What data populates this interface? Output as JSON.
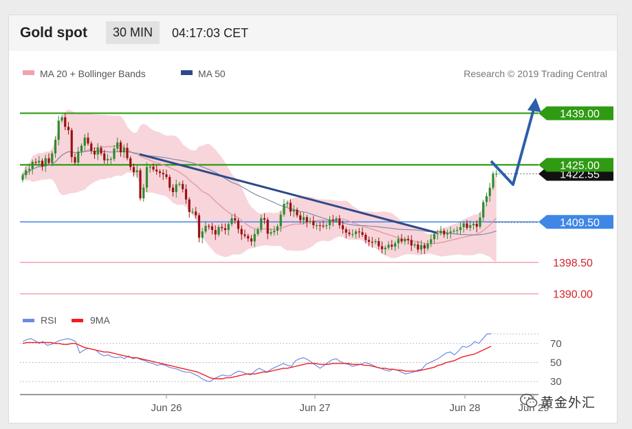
{
  "header": {
    "instrument": "Gold spot",
    "timeframe": "30 MIN",
    "clock": "04:17:03 CET"
  },
  "legend": {
    "ma20": "MA 20 + Bollinger Bands",
    "ma50": "MA 50",
    "rsi": "RSI",
    "ma9": "9MA",
    "credit": "Research © 2019 Trading Central"
  },
  "watermark": "黄金外汇",
  "colors": {
    "up": "#2e8b2e",
    "down": "#9b1010",
    "band": "#f4c7cf",
    "ma20": "#e49aa6",
    "ma50": "#7f8fa6",
    "trend": "#2d4a88",
    "forecast": "#2b5faa",
    "resistance": "#2f9a12",
    "pivot": "#3f86e6",
    "support": "#d3222a",
    "rsi": "#6c8ae4",
    "ma9": "#ee1e1e"
  },
  "chart_data": {
    "type": "candlestick",
    "price_axis": {
      "ylim": [
        1386,
        1446
      ]
    },
    "x_axis": {
      "ticks": [
        "Jun 26",
        "Jun 27",
        "Jun 28",
        "Jun 29"
      ]
    },
    "levels": [
      {
        "value": 1439.0,
        "label": "1439.00",
        "kind": "resistance"
      },
      {
        "value": 1425.0,
        "label": "1425.00",
        "kind": "resistance"
      },
      {
        "value": 1422.55,
        "label": "1422.55",
        "kind": "last"
      },
      {
        "value": 1409.5,
        "label": "1409.50",
        "kind": "pivot"
      },
      {
        "value": 1398.5,
        "label": "1398.50",
        "kind": "support"
      },
      {
        "value": 1390.0,
        "label": "1390.00",
        "kind": "support"
      }
    ],
    "close": [
      1422.2,
      1423.5,
      1423.9,
      1425.8,
      1425.6,
      1426.1,
      1424.6,
      1426.8,
      1425.5,
      1428.1,
      1431.8,
      1437.0,
      1437.9,
      1435.3,
      1434.4,
      1427.1,
      1425.6,
      1428.6,
      1430.2,
      1432.4,
      1430.8,
      1428.8,
      1427.8,
      1429.6,
      1428.1,
      1426.2,
      1426.6,
      1426.6,
      1429.4,
      1431.1,
      1428.4,
      1429.6,
      1426.8,
      1424.4,
      1423.0,
      1423.5,
      1415.9,
      1418.8,
      1424.4,
      1424.5,
      1423.7,
      1423.2,
      1422.8,
      1422.4,
      1421.7,
      1418.8,
      1417.6,
      1419.7,
      1419.8,
      1418.4,
      1415.6,
      1412.2,
      1412.3,
      1411.3,
      1405.2,
      1406.9,
      1408.4,
      1408.3,
      1407.3,
      1406.1,
      1408.1,
      1407.8,
      1407.3,
      1408.9,
      1410.5,
      1409.9,
      1407.6,
      1406.1,
      1405.7,
      1405.0,
      1404.2,
      1406.2,
      1407.5,
      1410.5,
      1410.1,
      1406.3,
      1406.7,
      1407.1,
      1408.3,
      1411.5,
      1414.4,
      1414.7,
      1412.3,
      1412.8,
      1411.3,
      1410.0,
      1410.8,
      1409.5,
      1409.8,
      1408.6,
      1408.6,
      1408.5,
      1408.4,
      1408.6,
      1410.1,
      1409.8,
      1410.4,
      1408.6,
      1407.5,
      1406.6,
      1406.2,
      1406.2,
      1406.9,
      1406.7,
      1406.0,
      1404.6,
      1404.1,
      1404.0,
      1404.3,
      1402.9,
      1402.1,
      1402.5,
      1403.3,
      1402.8,
      1403.7,
      1404.9,
      1404.2,
      1404.9,
      1404.6,
      1403.1,
      1403.4,
      1402.0,
      1403.2,
      1402.3,
      1403.6,
      1404.8,
      1406.2,
      1406.4,
      1407.1,
      1406.1,
      1406.5,
      1406.9,
      1407.1,
      1407.3,
      1408.1,
      1409.1,
      1407.9,
      1408.6,
      1409.0,
      1408.2,
      1410.7,
      1414.9,
      1416.5,
      1418.8,
      1422.6,
      1422.6
    ],
    "open": [
      1420.9,
      1422.2,
      1423.5,
      1423.9,
      1425.8,
      1425.6,
      1426.1,
      1424.6,
      1426.8,
      1425.5,
      1428.1,
      1431.8,
      1437.0,
      1437.9,
      1435.3,
      1434.4,
      1427.1,
      1425.6,
      1428.6,
      1430.2,
      1432.4,
      1430.8,
      1428.8,
      1427.8,
      1429.6,
      1428.1,
      1426.2,
      1426.6,
      1426.6,
      1429.4,
      1431.1,
      1428.4,
      1429.6,
      1426.8,
      1424.4,
      1423.0,
      1423.5,
      1415.9,
      1418.8,
      1424.4,
      1424.5,
      1423.7,
      1423.2,
      1422.8,
      1422.4,
      1421.7,
      1418.8,
      1417.6,
      1419.7,
      1419.8,
      1418.4,
      1415.6,
      1412.2,
      1412.3,
      1411.3,
      1405.2,
      1406.9,
      1408.4,
      1408.3,
      1407.3,
      1406.1,
      1408.1,
      1407.8,
      1407.3,
      1408.9,
      1410.5,
      1409.9,
      1407.6,
      1406.1,
      1405.7,
      1405.0,
      1404.2,
      1406.2,
      1407.5,
      1410.5,
      1410.1,
      1406.3,
      1406.7,
      1407.1,
      1408.3,
      1411.5,
      1414.4,
      1414.7,
      1412.3,
      1412.8,
      1411.3,
      1410.0,
      1410.8,
      1409.5,
      1409.8,
      1408.6,
      1408.6,
      1408.5,
      1408.4,
      1408.6,
      1410.1,
      1409.8,
      1410.4,
      1408.6,
      1407.5,
      1406.6,
      1406.2,
      1406.2,
      1406.9,
      1406.7,
      1406.0,
      1404.6,
      1404.1,
      1404.0,
      1404.3,
      1402.9,
      1402.1,
      1402.5,
      1403.3,
      1402.8,
      1403.7,
      1404.9,
      1404.2,
      1404.9,
      1404.6,
      1403.1,
      1403.4,
      1402.0,
      1403.2,
      1402.3,
      1403.6,
      1404.8,
      1406.2,
      1406.4,
      1407.1,
      1406.1,
      1406.5,
      1406.9,
      1407.1,
      1407.3,
      1408.1,
      1409.1,
      1407.9,
      1408.6,
      1409.0,
      1408.2,
      1410.7,
      1414.9,
      1416.5,
      1418.8,
      1422.6
    ],
    "rsi": [
      72,
      74,
      75,
      73,
      70,
      72,
      68,
      69,
      71,
      73,
      74,
      75,
      74,
      72,
      60,
      63,
      65,
      64,
      63,
      59,
      57,
      58,
      56,
      55,
      56,
      54,
      57,
      54,
      55,
      53,
      52,
      50,
      49,
      47,
      48,
      47,
      45,
      44,
      43,
      41,
      40,
      40,
      38,
      36,
      33,
      31,
      30,
      33,
      35,
      37,
      36,
      36,
      39,
      41,
      40,
      38,
      37,
      41,
      44,
      42,
      40,
      43,
      45,
      47,
      49,
      47,
      46,
      52,
      54,
      55,
      53,
      50,
      47,
      44,
      47,
      50,
      53,
      54,
      51,
      49,
      48,
      46,
      47,
      48,
      50,
      49,
      47,
      45,
      44,
      42,
      41,
      43,
      42,
      40,
      38,
      39,
      40,
      42,
      43,
      48,
      50,
      52,
      54,
      57,
      60,
      61,
      58,
      62,
      67,
      66,
      68,
      72,
      70,
      75,
      80,
      80
    ],
    "ma9": [
      70,
      71,
      71,
      71,
      71,
      71,
      71,
      71,
      70,
      70,
      69,
      69,
      70,
      70,
      68,
      66,
      65,
      64,
      63,
      62,
      61,
      61,
      60,
      59,
      58,
      57,
      56,
      55,
      55,
      54,
      53,
      52,
      51,
      50,
      49,
      48,
      47,
      46,
      45,
      44,
      43,
      42,
      41,
      40,
      38,
      36,
      34,
      33,
      33,
      33,
      34,
      34,
      35,
      36,
      37,
      38,
      38,
      38,
      39,
      40,
      40,
      41,
      42,
      43,
      44,
      44,
      45,
      46,
      47,
      48,
      49,
      49,
      49,
      48,
      48,
      48,
      49,
      49,
      49,
      49,
      49,
      48,
      48,
      48,
      47,
      47,
      46,
      45,
      44,
      44,
      43,
      43,
      42,
      42,
      41,
      41,
      41,
      41,
      42,
      43,
      44,
      45,
      47,
      48,
      50,
      51,
      52,
      54,
      56,
      57,
      58,
      59,
      61,
      63,
      65,
      67
    ]
  }
}
